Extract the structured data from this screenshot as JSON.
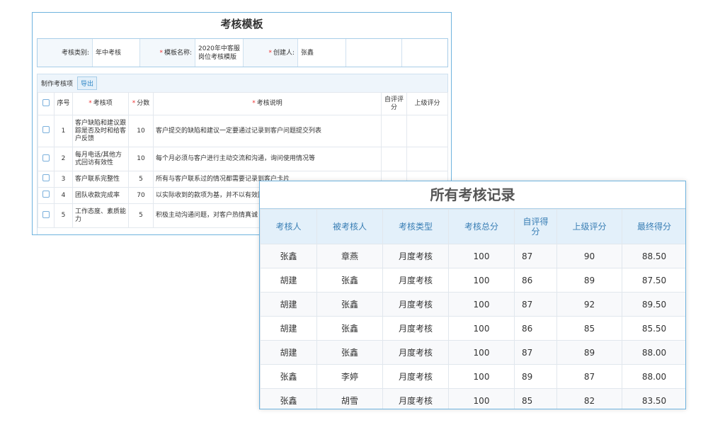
{
  "required_mark": "*",
  "template": {
    "title": "考核模板",
    "info": [
      {
        "label": "考核类别:",
        "value": "年中考核",
        "required": false
      },
      {
        "label": "模板名称:",
        "value": "2020年中客服岗位考核模版",
        "required": true
      },
      {
        "label": "创建人:",
        "value": "张鑫",
        "required": true
      }
    ],
    "toolbar": {
      "label": "制作考核项",
      "button": "导出"
    },
    "headers": [
      {
        "text": "序号",
        "required": false
      },
      {
        "text": "考核项",
        "required": true
      },
      {
        "text": "分数",
        "required": true
      },
      {
        "text": "考核说明",
        "required": true
      },
      {
        "text": "自评评分",
        "required": false
      },
      {
        "text": "上级评分",
        "required": false
      }
    ],
    "rows": [
      [
        "1",
        "客户缺陷和建议跟踪是否及时和给客户反馈",
        "10",
        "客户提交的缺陷和建议一定要通过记录到客户问题提交列表"
      ],
      [
        "2",
        "每月电话/其他方式回访有效性",
        "10",
        "每个月必须与客户进行主动交流和沟通，询问使用情况等"
      ],
      [
        "3",
        "客户联系完整性",
        "5",
        "所有与客户联系过的情况都需要记录到客户卡片"
      ],
      [
        "4",
        "团队收款完成率",
        "70",
        "以实际收到的款项为基，并不以有效回款"
      ],
      [
        "5",
        "工作态度、素质能力",
        "5",
        "积极主动沟通问题，对客户热情真诚"
      ]
    ]
  },
  "records": {
    "title": "所有考核记录",
    "headers": [
      "考核人",
      "被考核人",
      "考核类型",
      "考核总分",
      "自评得分",
      "上级评分",
      "最终得分"
    ],
    "rows": [
      [
        "张鑫",
        "章燕",
        "月度考核",
        "100",
        "87",
        "90",
        "88.50"
      ],
      [
        "胡建",
        "张鑫",
        "月度考核",
        "100",
        "86",
        "89",
        "87.50"
      ],
      [
        "胡建",
        "张鑫",
        "月度考核",
        "100",
        "87",
        "92",
        "89.50"
      ],
      [
        "胡建",
        "张鑫",
        "月度考核",
        "100",
        "86",
        "85",
        "85.50"
      ],
      [
        "胡建",
        "张鑫",
        "月度考核",
        "100",
        "87",
        "89",
        "88.00"
      ],
      [
        "张鑫",
        "李婷",
        "月度考核",
        "100",
        "89",
        "87",
        "88.00"
      ],
      [
        "张鑫",
        "胡雪",
        "月度考核",
        "100",
        "85",
        "82",
        "83.50"
      ]
    ]
  }
}
